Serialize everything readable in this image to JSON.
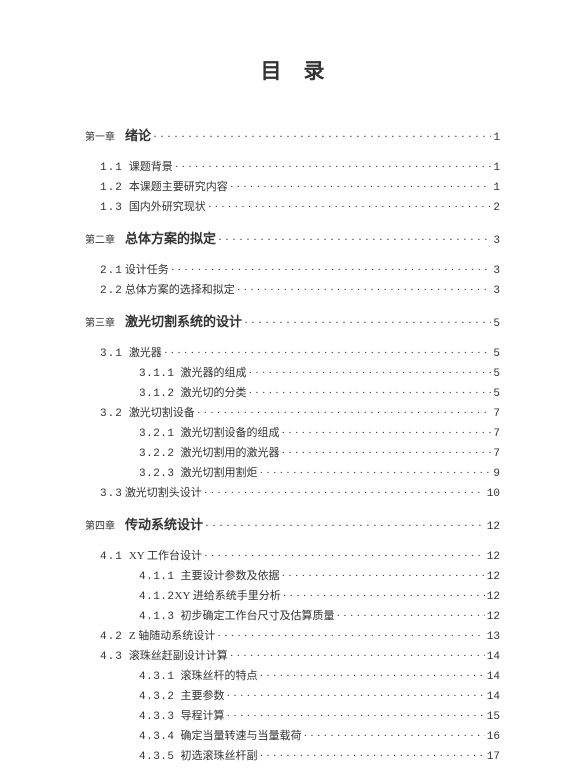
{
  "title": "目录",
  "colors": {
    "bg": "#ffffff",
    "text": "#333333"
  },
  "font_family": "SimSun",
  "font_sizes": {
    "title": 21,
    "chapter": 13,
    "chapter_label": 10,
    "section": 11
  },
  "chapters": [
    {
      "label": "第一章",
      "title": "绪论",
      "page": "1",
      "sections": [
        {
          "num": "1.1",
          "text": "课题背景",
          "page": "1"
        },
        {
          "num": "1.2",
          "text": "本课题主要研究内容",
          "page": "1"
        },
        {
          "num": "1.3",
          "text": "国内外研究现状",
          "page": "2"
        }
      ]
    },
    {
      "label": "第二章",
      "title": "总体方案的拟定",
      "page": "3",
      "sections": [
        {
          "num": "2.1",
          "text": "设计任务",
          "page": "3",
          "tight": true
        },
        {
          "num": "2.2",
          "text": "总体方案的选择和拟定",
          "page": "3",
          "tight": true
        }
      ]
    },
    {
      "label": "第三章",
      "title": "激光切割系统的设计",
      "page": "5",
      "sections": [
        {
          "num": "3.1",
          "text": "激光器",
          "page": "5",
          "subs": [
            {
              "num": "3.1.1",
              "text": "激光器的组成",
              "page": "5"
            },
            {
              "num": "3.1.2",
              "text": "激光切的分类",
              "page": "5"
            }
          ]
        },
        {
          "num": "3.2",
          "text": "激光切割设备",
          "page": "7",
          "subs": [
            {
              "num": "3.2.1",
              "text": "激光切割设备的组成",
              "page": "7"
            },
            {
              "num": "3.2.2",
              "text": "激光切割用的激光器",
              "page": "7"
            },
            {
              "num": "3.2.3",
              "text": "激光切割用割炬",
              "page": "9"
            }
          ]
        },
        {
          "num": "3.3",
          "text": "激光切割头设计",
          "page": "10",
          "tight": true
        }
      ]
    },
    {
      "label": "第四章",
      "title": "传动系统设计",
      "page": "12",
      "sections": [
        {
          "num": "4.1",
          "text": "XY 工作台设计",
          "page": "12",
          "subs": [
            {
              "num": "4.1.1",
              "text": "主要设计参数及依据",
              "page": "12"
            },
            {
              "num": "4.1.2",
              "text": "XY 进给系统手里分析",
              "page": "12",
              "tight": true
            },
            {
              "num": "4.1.3",
              "text": "初步确定工作台尺寸及估算质量",
              "page": "12"
            }
          ]
        },
        {
          "num": "4.2",
          "text": "Z 轴随动系统设计",
          "page": "13"
        },
        {
          "num": "4.3",
          "text": "滚珠丝赶副设计计算",
          "page": "14",
          "subs": [
            {
              "num": "4.3.1",
              "text": "滚珠丝杆的特点",
              "page": "14"
            },
            {
              "num": "4.3.2",
              "text": "主要参数",
              "page": "14"
            },
            {
              "num": "4.3.3",
              "text": "导程计算",
              "page": "15"
            },
            {
              "num": "4.3.4",
              "text": "确定当量转速与当量载荷",
              "page": "16"
            },
            {
              "num": "4.3.5",
              "text": "初选滚珠丝杆副",
              "page": "17"
            }
          ]
        }
      ]
    }
  ]
}
